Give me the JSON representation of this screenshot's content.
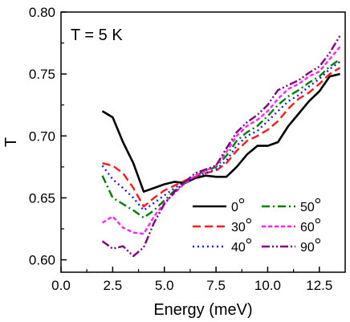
{
  "chart_data": {
    "type": "line",
    "title": "",
    "annotation": "T = 5 K",
    "xlabel": "Energy (meV)",
    "ylabel": "T",
    "xlim": [
      0.0,
      13.75
    ],
    "ylim": [
      0.59,
      0.8
    ],
    "x_ticks": [
      0.0,
      2.5,
      5.0,
      7.5,
      10.0,
      12.5
    ],
    "x_tick_labels": [
      "0.0",
      "2.5",
      "5.0",
      "7.5",
      "10.0",
      "12.5"
    ],
    "y_ticks": [
      0.6,
      0.65,
      0.7,
      0.75,
      0.8
    ],
    "y_tick_labels": [
      "0.60",
      "0.65",
      "0.70",
      "0.75",
      "0.80"
    ],
    "grid": false,
    "legend_position": "bottom-right",
    "series": [
      {
        "name": "0",
        "color": "#000000",
        "dash": "solid",
        "x": [
          2.0,
          2.5,
          3.0,
          3.5,
          4.0,
          4.5,
          5.0,
          5.5,
          6.0,
          6.5,
          7.0,
          7.5,
          8.0,
          8.5,
          9.0,
          9.5,
          10.0,
          10.5,
          11.0,
          11.5,
          12.0,
          12.5,
          13.0,
          13.5
        ],
        "values": [
          0.72,
          0.715,
          0.695,
          0.678,
          0.655,
          0.658,
          0.661,
          0.663,
          0.662,
          0.666,
          0.668,
          0.667,
          0.667,
          0.675,
          0.685,
          0.692,
          0.692,
          0.695,
          0.708,
          0.718,
          0.728,
          0.736,
          0.748,
          0.75
        ]
      },
      {
        "name": "30",
        "color": "#ff1a1a",
        "dash": "dash",
        "x": [
          2.0,
          2.5,
          3.0,
          3.5,
          4.0,
          4.5,
          5.0,
          5.5,
          6.0,
          6.5,
          7.0,
          7.5,
          8.0,
          8.5,
          9.0,
          9.5,
          10.0,
          10.5,
          11.0,
          11.5,
          12.0,
          12.5,
          13.0,
          13.5
        ],
        "values": [
          0.678,
          0.676,
          0.67,
          0.658,
          0.643,
          0.65,
          0.656,
          0.66,
          0.664,
          0.667,
          0.67,
          0.672,
          0.678,
          0.688,
          0.696,
          0.7,
          0.705,
          0.712,
          0.722,
          0.73,
          0.735,
          0.742,
          0.75,
          0.755
        ]
      },
      {
        "name": "40",
        "color": "#1a1aff",
        "dash": "dot",
        "x": [
          2.0,
          2.5,
          3.0,
          3.5,
          4.0,
          4.5,
          5.0,
          5.5,
          6.0,
          6.5,
          7.0,
          7.5,
          8.0,
          8.5,
          9.0,
          9.5,
          10.0,
          10.5,
          11.0,
          11.5,
          12.0,
          12.5,
          13.0,
          13.5
        ],
        "values": [
          0.676,
          0.665,
          0.658,
          0.65,
          0.64,
          0.646,
          0.652,
          0.658,
          0.663,
          0.667,
          0.67,
          0.673,
          0.68,
          0.692,
          0.7,
          0.704,
          0.712,
          0.72,
          0.728,
          0.733,
          0.74,
          0.746,
          0.754,
          0.76
        ]
      },
      {
        "name": "50",
        "color": "#008000",
        "dash": "dashdot",
        "x": [
          2.0,
          2.5,
          3.0,
          3.5,
          4.0,
          4.5,
          5.0,
          5.5,
          6.0,
          6.5,
          7.0,
          7.5,
          8.0,
          8.5,
          9.0,
          9.5,
          10.0,
          10.5,
          11.0,
          11.5,
          12.0,
          12.5,
          13.0,
          13.5
        ],
        "values": [
          0.668,
          0.65,
          0.645,
          0.64,
          0.634,
          0.64,
          0.648,
          0.656,
          0.662,
          0.668,
          0.672,
          0.675,
          0.684,
          0.696,
          0.703,
          0.708,
          0.716,
          0.725,
          0.732,
          0.737,
          0.743,
          0.748,
          0.756,
          0.762
        ]
      },
      {
        "name": "60",
        "color": "#ff22ff",
        "dash": "shortdash",
        "x": [
          2.0,
          2.5,
          3.0,
          3.5,
          4.0,
          4.5,
          5.0,
          5.5,
          6.0,
          6.5,
          7.0,
          7.5,
          8.0,
          8.5,
          9.0,
          9.5,
          10.0,
          10.5,
          11.0,
          11.5,
          12.0,
          12.5,
          13.0,
          13.5
        ],
        "values": [
          0.63,
          0.635,
          0.626,
          0.622,
          0.621,
          0.635,
          0.646,
          0.654,
          0.662,
          0.668,
          0.672,
          0.676,
          0.687,
          0.7,
          0.708,
          0.713,
          0.72,
          0.73,
          0.738,
          0.742,
          0.748,
          0.752,
          0.762,
          0.772
        ]
      },
      {
        "name": "90",
        "color": "#800080",
        "dash": "dashdotdot",
        "x": [
          2.0,
          2.5,
          3.0,
          3.5,
          4.0,
          4.5,
          5.0,
          5.5,
          6.0,
          6.5,
          7.0,
          7.5,
          8.0,
          8.5,
          9.0,
          9.5,
          10.0,
          10.5,
          11.0,
          11.5,
          12.0,
          12.5,
          13.0,
          13.5
        ],
        "values": [
          0.615,
          0.609,
          0.611,
          0.603,
          0.61,
          0.63,
          0.645,
          0.655,
          0.663,
          0.67,
          0.673,
          0.676,
          0.69,
          0.703,
          0.711,
          0.717,
          0.725,
          0.737,
          0.741,
          0.745,
          0.751,
          0.756,
          0.767,
          0.781
        ]
      }
    ]
  }
}
